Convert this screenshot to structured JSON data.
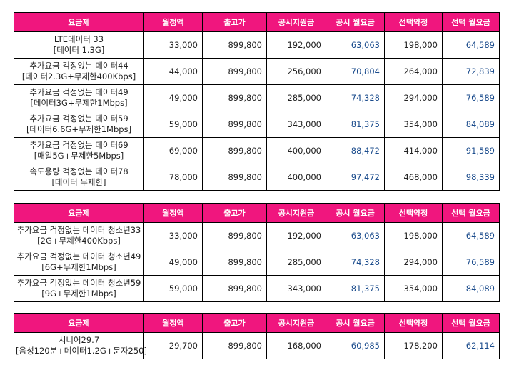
{
  "headers": [
    "요금제",
    "월정액",
    "출고가",
    "공시지원금",
    "공시 월요금",
    "선택약정",
    "선택 월요금"
  ],
  "table1": [
    {
      "name1": "LTE데이터 33",
      "name2": "[데이터 1.3G]",
      "monthly": "33,000",
      "price": "899,800",
      "subsidy": "192,000",
      "subsidy_monthly": "63,063",
      "contract": "198,000",
      "contract_monthly": "64,589"
    },
    {
      "name1": "추가요금 걱정없는 데이터44",
      "name2": "[데이터2.3G+무제한400Kbps]",
      "monthly": "44,000",
      "price": "899,800",
      "subsidy": "256,000",
      "subsidy_monthly": "70,804",
      "contract": "264,000",
      "contract_monthly": "72,839"
    },
    {
      "name1": "추가요금 걱정없는 데이터49",
      "name2": "[데이터3G+무제한1Mbps]",
      "monthly": "49,000",
      "price": "899,800",
      "subsidy": "285,000",
      "subsidy_monthly": "74,328",
      "contract": "294,000",
      "contract_monthly": "76,589"
    },
    {
      "name1": "추가요금 걱정없는 데이터59",
      "name2": "[데이터6.6G+무제한1Mbps]",
      "monthly": "59,000",
      "price": "899,800",
      "subsidy": "343,000",
      "subsidy_monthly": "81,375",
      "contract": "354,000",
      "contract_monthly": "84,089"
    },
    {
      "name1": "추가요금 걱정없는 데이터69",
      "name2": "[매일5G+무제한5Mbps]",
      "monthly": "69,000",
      "price": "899,800",
      "subsidy": "400,000",
      "subsidy_monthly": "88,472",
      "contract": "414,000",
      "contract_monthly": "91,589"
    },
    {
      "name1": "속도용량 걱정없는 데이터78",
      "name2": "[데이터 무제한]",
      "monthly": "78,000",
      "price": "899,800",
      "subsidy": "400,000",
      "subsidy_monthly": "97,472",
      "contract": "468,000",
      "contract_monthly": "98,339"
    }
  ],
  "table2": [
    {
      "name1": "추가요금 걱정없는 데이터 청소년33",
      "name2": "[2G+무제한400Kbps]",
      "monthly": "33,000",
      "price": "899,800",
      "subsidy": "192,000",
      "subsidy_monthly": "63,063",
      "contract": "198,000",
      "contract_monthly": "64,589"
    },
    {
      "name1": "추가요금 걱정없는 데이터 청소년49",
      "name2": "[6G+무제한1Mbps]",
      "monthly": "49,000",
      "price": "899,800",
      "subsidy": "285,000",
      "subsidy_monthly": "74,328",
      "contract": "294,000",
      "contract_monthly": "76,589"
    },
    {
      "name1": "추가요금 걱정없는 데이터 청소년59",
      "name2": "[9G+무제한1Mbps]",
      "monthly": "59,000",
      "price": "899,800",
      "subsidy": "343,000",
      "subsidy_monthly": "81,375",
      "contract": "354,000",
      "contract_monthly": "84,089"
    }
  ],
  "table3": [
    {
      "name1": "시니어29.7",
      "name2": "[음성120분+데이터1.2G+문자250]",
      "monthly": "29,700",
      "price": "899,800",
      "subsidy": "168,000",
      "subsidy_monthly": "60,985",
      "contract": "178,200",
      "contract_monthly": "62,114"
    }
  ]
}
